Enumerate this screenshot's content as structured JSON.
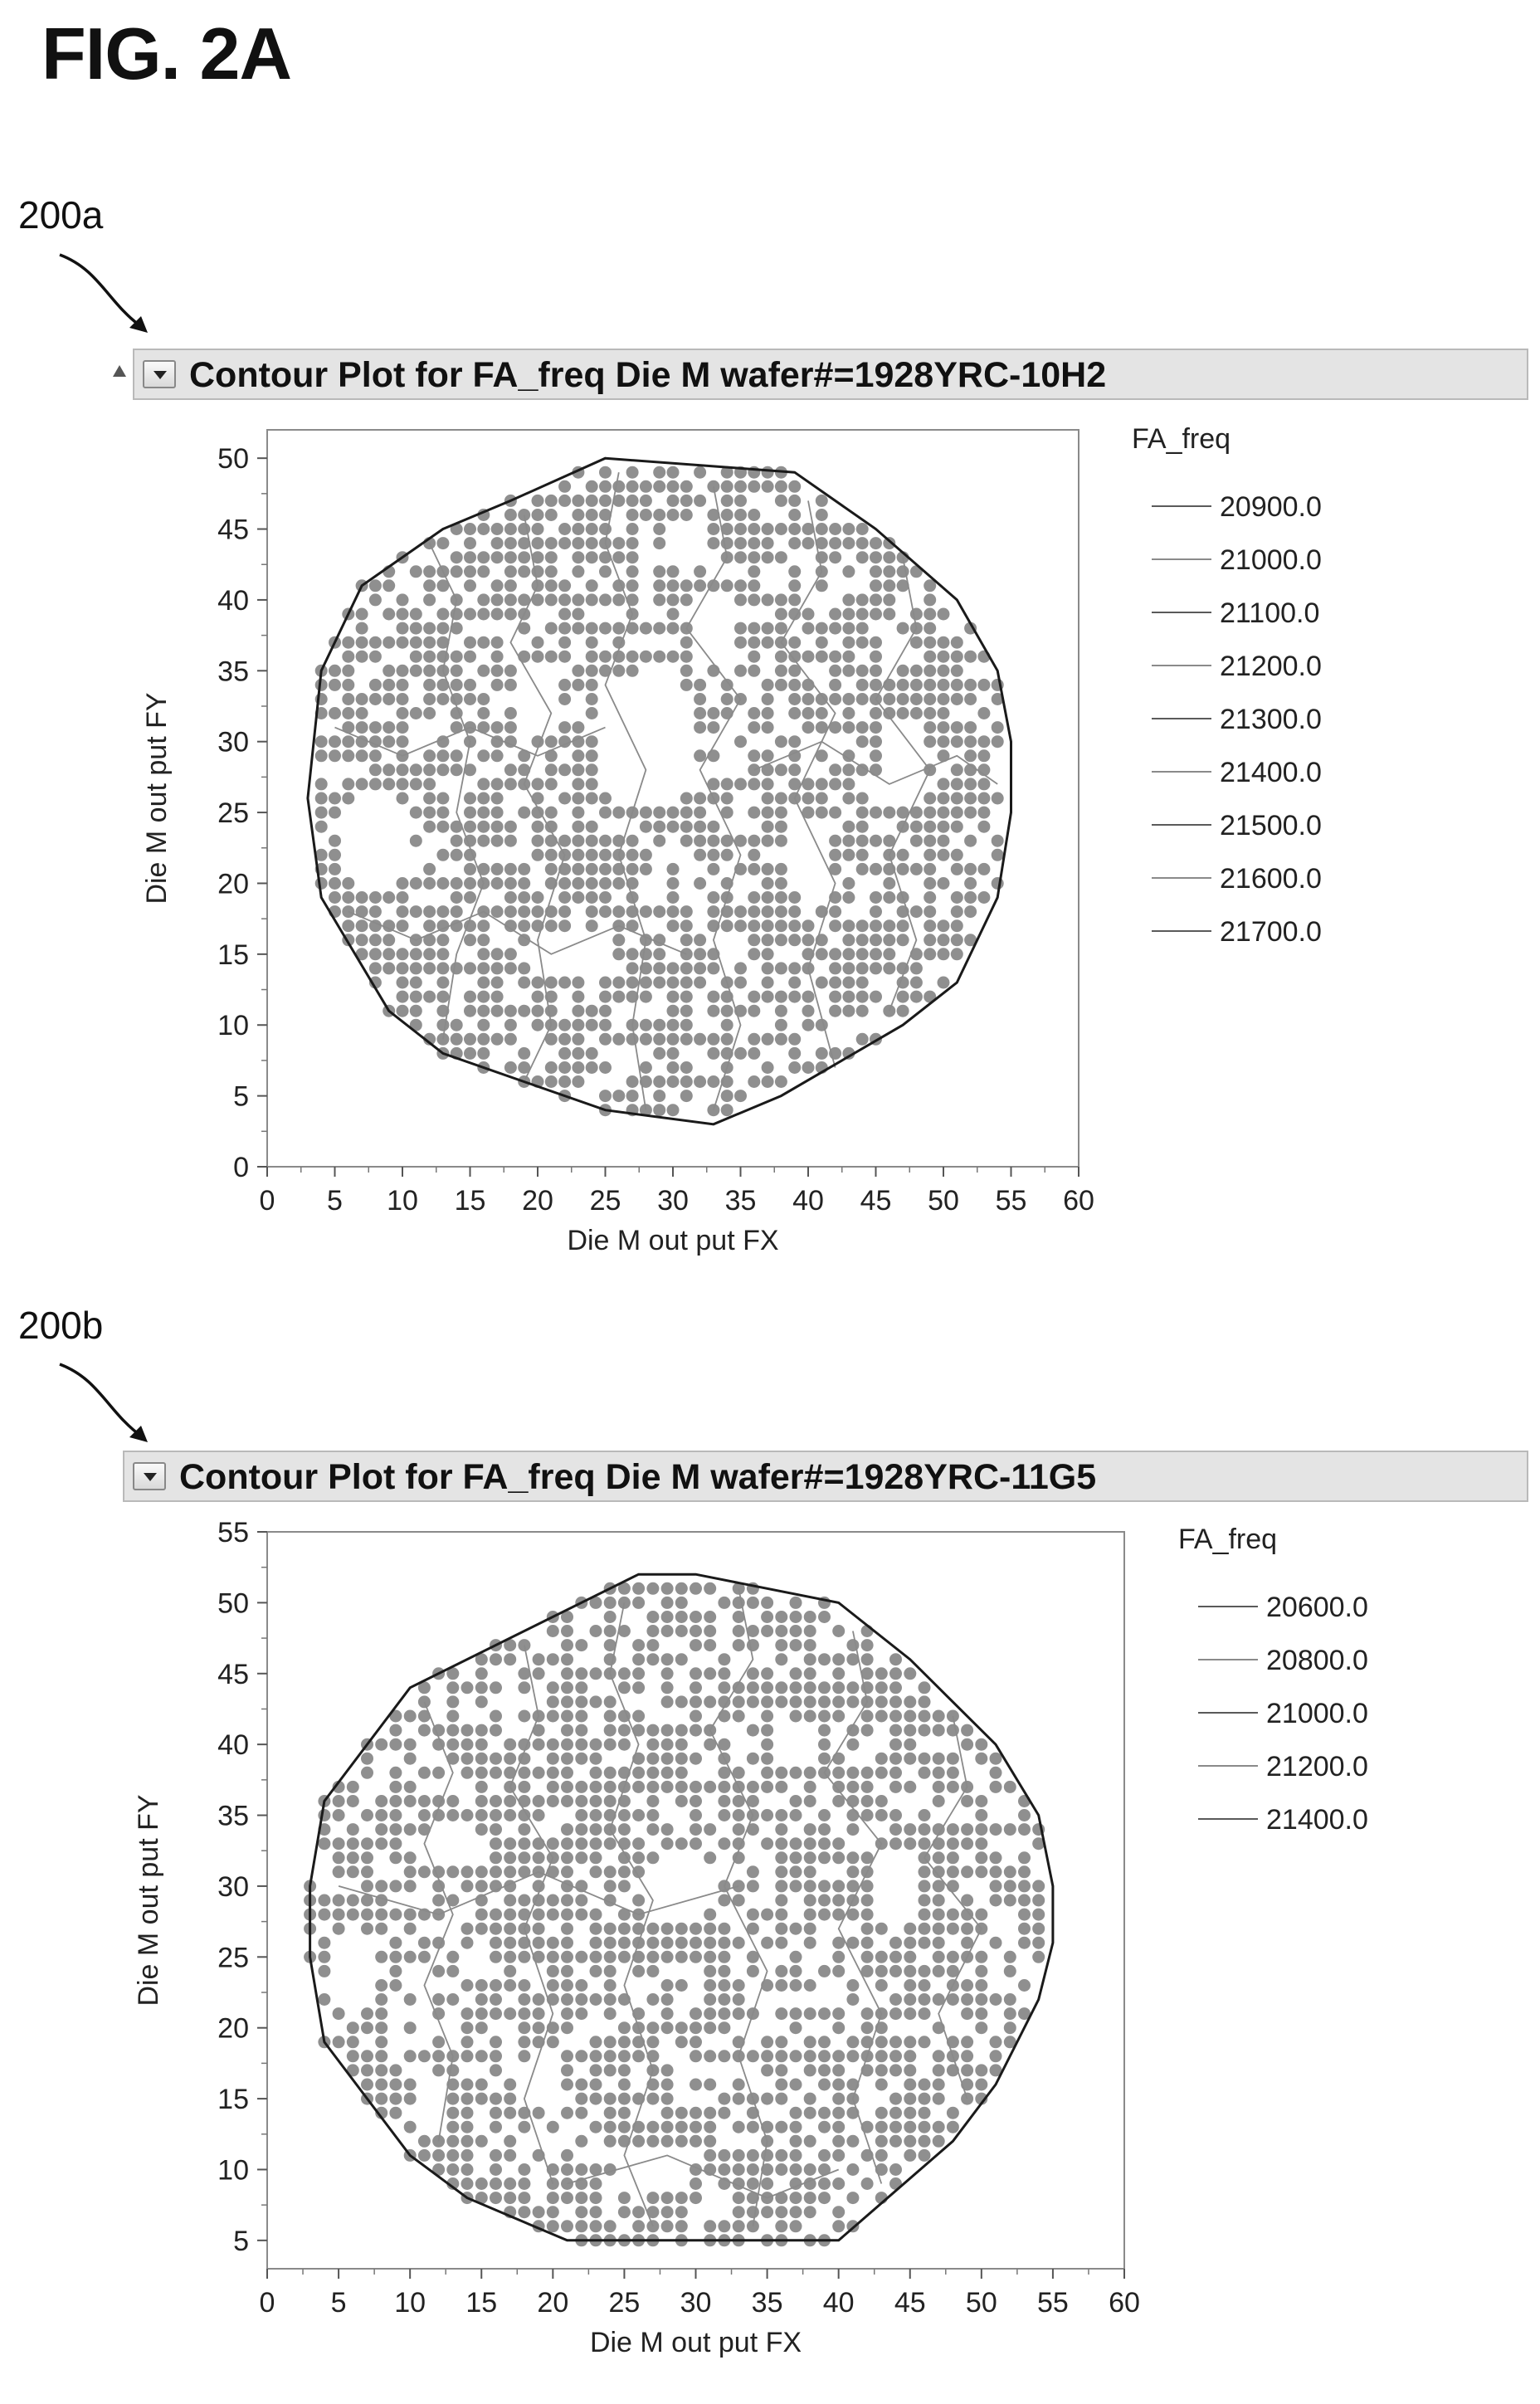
{
  "figure_label": "FIG. 2A",
  "colors": {
    "points": "#8f8f8f",
    "hull": "#1a1a1a",
    "contour": "#8a8a8a",
    "header_bg": "#e4e4e4"
  },
  "icons": [
    "disclosure-triangle-icon",
    "dropdown-arrow-icon"
  ],
  "panels": [
    {
      "ref": "200a",
      "header_title": "Contour Plot for FA_freq Die M wafer#=1928YRC-10H2",
      "chart_data": {
        "type": "scatter",
        "title": "Contour Plot for FA_freq Die M wafer#=1928YRC-10H2",
        "xlabel": "Die M out put FX",
        "ylabel": "Die M out put FY",
        "xlim": [
          0,
          60
        ],
        "ylim": [
          0,
          52
        ],
        "xticks": [
          "0",
          "5",
          "10",
          "15",
          "20",
          "25",
          "30",
          "35",
          "40",
          "45",
          "50",
          "55",
          "60"
        ],
        "yticks": [
          "0",
          "5",
          "10",
          "15",
          "20",
          "25",
          "30",
          "35",
          "40",
          "45",
          "50"
        ],
        "legend_title": "FA_freq",
        "legend_position": "right",
        "legend": [
          "20900.0",
          "21000.0",
          "21100.0",
          "21200.0",
          "21300.0",
          "21400.0",
          "21500.0",
          "21600.0",
          "21700.0"
        ],
        "hull": [
          [
            25,
            50
          ],
          [
            39,
            49
          ],
          [
            45,
            45
          ],
          [
            51,
            40
          ],
          [
            54,
            35
          ],
          [
            55,
            30
          ],
          [
            55,
            25
          ],
          [
            54,
            19
          ],
          [
            51,
            13
          ],
          [
            47,
            10
          ],
          [
            38,
            5
          ],
          [
            33,
            3
          ],
          [
            25,
            4
          ],
          [
            13,
            8
          ],
          [
            9,
            11
          ],
          [
            4,
            19
          ],
          [
            3,
            26
          ],
          [
            4,
            35
          ],
          [
            7,
            41
          ],
          [
            13,
            45
          ],
          [
            18,
            47
          ]
        ],
        "holes": [
          [
            28,
            30,
            4,
            5
          ],
          [
            8,
            23,
            3,
            4
          ],
          [
            20,
            33,
            2,
            3
          ],
          [
            33,
            38,
            2,
            2.5
          ],
          [
            40,
            22,
            2,
            3
          ],
          [
            22,
            15,
            2.5,
            2
          ],
          [
            47,
            28,
            2,
            3
          ],
          [
            31,
            44,
            2,
            2
          ]
        ],
        "contours": [
          [
            [
              12,
              44
            ],
            [
              14,
              40
            ],
            [
              13,
              35
            ],
            [
              15,
              30
            ],
            [
              14,
              25
            ],
            [
              16,
              20
            ],
            [
              14,
              15
            ],
            [
              13,
              9
            ]
          ],
          [
            [
              19,
              46
            ],
            [
              20,
              41
            ],
            [
              18,
              37
            ],
            [
              21,
              32
            ],
            [
              19,
              27
            ],
            [
              22,
              22
            ],
            [
              20,
              16
            ],
            [
              21,
              10
            ],
            [
              19,
              6
            ]
          ],
          [
            [
              26,
              49
            ],
            [
              25,
              44
            ],
            [
              27,
              39
            ],
            [
              25,
              34
            ],
            [
              28,
              28
            ],
            [
              26,
              22
            ],
            [
              28,
              16
            ],
            [
              27,
              10
            ],
            [
              28,
              4
            ]
          ],
          [
            [
              33,
              48
            ],
            [
              34,
              43
            ],
            [
              31,
              38
            ],
            [
              35,
              33
            ],
            [
              32,
              28
            ],
            [
              35,
              22
            ],
            [
              33,
              16
            ],
            [
              35,
              10
            ],
            [
              33,
              4
            ]
          ],
          [
            [
              40,
              47
            ],
            [
              41,
              42
            ],
            [
              38,
              37
            ],
            [
              42,
              32
            ],
            [
              39,
              26
            ],
            [
              42,
              20
            ],
            [
              40,
              14
            ],
            [
              42,
              7
            ]
          ],
          [
            [
              47,
              43
            ],
            [
              48,
              38
            ],
            [
              45,
              33
            ],
            [
              49,
              28
            ],
            [
              46,
              22
            ],
            [
              48,
              16
            ],
            [
              46,
              11
            ]
          ],
          [
            [
              5,
              31
            ],
            [
              10,
              29
            ],
            [
              15,
              31
            ],
            [
              20,
              29
            ],
            [
              25,
              31
            ]
          ],
          [
            [
              6,
              18
            ],
            [
              11,
              16
            ],
            [
              16,
              18
            ],
            [
              21,
              15
            ],
            [
              26,
              17
            ],
            [
              31,
              15
            ]
          ],
          [
            [
              36,
              28
            ],
            [
              41,
              30
            ],
            [
              46,
              27
            ],
            [
              51,
              29
            ],
            [
              54,
              27
            ]
          ]
        ]
      }
    },
    {
      "ref": "200b",
      "header_title": "Contour Plot for FA_freq Die M wafer#=1928YRC-11G5",
      "chart_data": {
        "type": "scatter",
        "title": "Contour Plot for FA_freq Die M wafer#=1928YRC-11G5",
        "xlabel": "Die M out put FX",
        "ylabel": "Die M out put FY",
        "xlim": [
          0,
          60
        ],
        "ylim": [
          3,
          55
        ],
        "xticks": [
          "0",
          "5",
          "10",
          "15",
          "20",
          "25",
          "30",
          "35",
          "40",
          "45",
          "50",
          "55",
          "60"
        ],
        "yticks": [
          "5",
          "10",
          "15",
          "20",
          "25",
          "30",
          "35",
          "40",
          "45",
          "50",
          "55"
        ],
        "legend_title": "FA_freq",
        "legend_position": "right",
        "legend": [
          "20600.0",
          "20800.0",
          "21000.0",
          "21200.0",
          "21400.0"
        ],
        "hull": [
          [
            26,
            52
          ],
          [
            30,
            52
          ],
          [
            40,
            50
          ],
          [
            45,
            46
          ],
          [
            51,
            40
          ],
          [
            54,
            35
          ],
          [
            55,
            30
          ],
          [
            55,
            26
          ],
          [
            54,
            22
          ],
          [
            51,
            16
          ],
          [
            48,
            12
          ],
          [
            40,
            5
          ],
          [
            21,
            5
          ],
          [
            14,
            8
          ],
          [
            10,
            11
          ],
          [
            4,
            19
          ],
          [
            3,
            25
          ],
          [
            3,
            30
          ],
          [
            4,
            36
          ],
          [
            10,
            44
          ]
        ],
        "holes": [
          [
            29,
            30,
            2.5,
            3
          ],
          [
            6,
            24,
            2,
            3
          ],
          [
            19,
            16,
            2,
            2
          ],
          [
            37,
            40,
            2,
            2
          ],
          [
            44,
            30,
            2,
            3
          ],
          [
            27,
            10,
            3,
            2
          ],
          [
            13,
            33,
            2,
            2
          ]
        ],
        "contours": [
          [
            [
              11,
              43
            ],
            [
              13,
              38
            ],
            [
              11,
              33
            ],
            [
              13,
              28
            ],
            [
              11,
              23
            ],
            [
              13,
              18
            ],
            [
              12,
              12
            ]
          ],
          [
            [
              18,
              47
            ],
            [
              19,
              42
            ],
            [
              17,
              37
            ],
            [
              20,
              32
            ],
            [
              18,
              27
            ],
            [
              20,
              21
            ],
            [
              18,
              15
            ],
            [
              20,
              9
            ]
          ],
          [
            [
              25,
              50
            ],
            [
              24,
              45
            ],
            [
              26,
              40
            ],
            [
              24,
              34
            ],
            [
              27,
              29
            ],
            [
              25,
              23
            ],
            [
              27,
              17
            ],
            [
              25,
              11
            ],
            [
              27,
              6
            ]
          ],
          [
            [
              33,
              51
            ],
            [
              34,
              46
            ],
            [
              31,
              41
            ],
            [
              34,
              35
            ],
            [
              32,
              30
            ],
            [
              35,
              24
            ],
            [
              33,
              18
            ],
            [
              35,
              12
            ],
            [
              34,
              6
            ]
          ],
          [
            [
              41,
              48
            ],
            [
              42,
              43
            ],
            [
              39,
              38
            ],
            [
              43,
              33
            ],
            [
              40,
              27
            ],
            [
              43,
              21
            ],
            [
              41,
              15
            ],
            [
              43,
              9
            ]
          ],
          [
            [
              48,
              42
            ],
            [
              49,
              37
            ],
            [
              46,
              32
            ],
            [
              50,
              27
            ],
            [
              47,
              21
            ],
            [
              49,
              15
            ]
          ],
          [
            [
              5,
              30
            ],
            [
              12,
              28
            ],
            [
              19,
              31
            ],
            [
              26,
              28
            ],
            [
              33,
              30
            ]
          ],
          [
            [
              21,
              9
            ],
            [
              28,
              11
            ],
            [
              35,
              8
            ],
            [
              40,
              10
            ]
          ]
        ]
      }
    }
  ]
}
